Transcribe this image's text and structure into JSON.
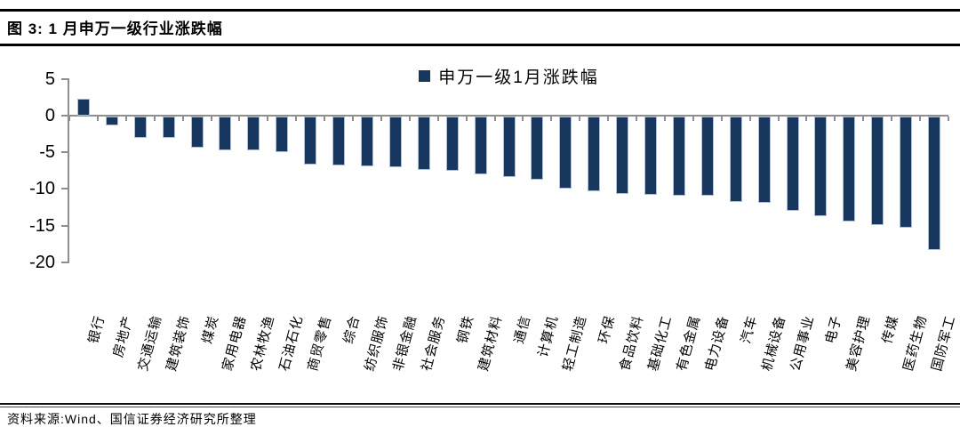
{
  "figure": {
    "title": "图 3: 1 月申万一级行业涨跌幅",
    "source": "资料来源:Wind、国信证券经济研究所整理"
  },
  "chart_data": {
    "type": "bar",
    "title": "图 3: 1 月申万一级行业涨跌幅",
    "legend": "申万一级1月涨跌幅",
    "legend_position": "top-center",
    "grid": false,
    "ylim": [
      -20,
      5
    ],
    "yticks": [
      5,
      0,
      -5,
      -10,
      -15,
      -20
    ],
    "ytick_labels": [
      "5",
      "0",
      "-5",
      "-10",
      "-15",
      "-20"
    ],
    "xlabel": "",
    "ylabel": "",
    "bar_color": "#17375E",
    "bar_border_color": "#aebfd6",
    "axis_color": "#8e8e8e",
    "categories": [
      "银行",
      "房地产",
      "交通运输",
      "建筑装饰",
      "煤炭",
      "家用电器",
      "农林牧渔",
      "石油石化",
      "商贸零售",
      "综合",
      "纺织服饰",
      "非银金融",
      "社会服务",
      "钢铁",
      "建筑材料",
      "通信",
      "计算机",
      "轻工制造",
      "环保",
      "食品饮料",
      "基础化工",
      "有色金属",
      "电力设备",
      "汽车",
      "机械设备",
      "公用事业",
      "电子",
      "美容护理",
      "传媒",
      "医药生物",
      "国防军工"
    ],
    "values": [
      2.3,
      -1.2,
      -2.9,
      -2.9,
      -4.3,
      -4.6,
      -4.6,
      -4.9,
      -6.5,
      -6.7,
      -6.8,
      -6.9,
      -7.3,
      -7.4,
      -7.9,
      -8.3,
      -8.6,
      -9.8,
      -10.2,
      -10.6,
      -10.7,
      -10.8,
      -10.8,
      -11.7,
      -11.8,
      -12.9,
      -13.6,
      -14.3,
      -14.8,
      -15.2,
      -18.2
    ]
  }
}
